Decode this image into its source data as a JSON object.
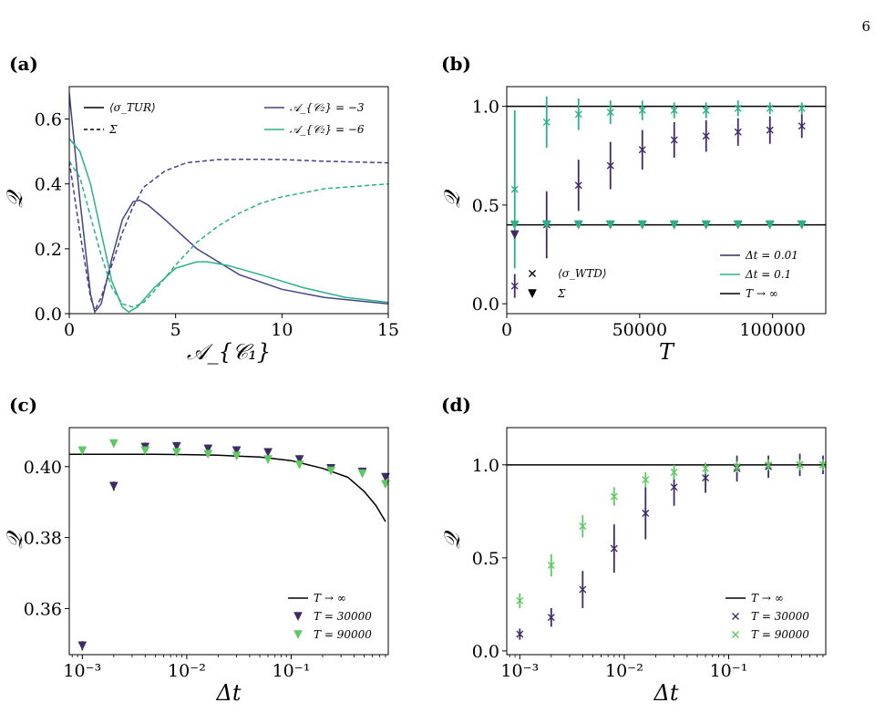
{
  "page_number": "6",
  "colors": {
    "dark_purple": "#3f2a66",
    "green": "#2ab18a",
    "indigo": "#414487",
    "black": "#000000",
    "light_green": "#5ec962"
  },
  "chart_data": [
    {
      "panel": "(a)",
      "type": "line",
      "xlabel": "𝒜_{𝒞₁}",
      "ylabel": "𝒬",
      "xlim": [
        0,
        15
      ],
      "ylim": [
        0,
        0.7
      ],
      "xticks": [
        "0",
        "5",
        "10",
        "15"
      ],
      "yticks": [
        "0.0",
        "0.2",
        "0.4",
        "0.6"
      ],
      "legend_style": [
        "⟨σ_TUR⟩",
        "Σ"
      ],
      "legend_color": [
        "𝒜_{𝒞₂} = −3",
        "𝒜_{𝒞₂} = −6"
      ],
      "series": [
        {
          "name": "⟨σ_TUR⟩, 𝒜_{𝒞₂} = −3",
          "color": "#414487",
          "dash": false,
          "x": [
            0,
            0.5,
            1.0,
            1.2,
            1.5,
            2.0,
            2.5,
            3.0,
            3.3,
            3.7,
            4.5,
            6,
            8,
            10,
            12,
            15
          ],
          "y": [
            0.68,
            0.35,
            0.06,
            0.005,
            0.03,
            0.17,
            0.29,
            0.345,
            0.35,
            0.335,
            0.29,
            0.2,
            0.12,
            0.075,
            0.05,
            0.03
          ]
        },
        {
          "name": "⟨σ_TUR⟩, 𝒜_{𝒞₂} = −6",
          "color": "#2ab18a",
          "dash": false,
          "x": [
            0,
            0.5,
            1.0,
            1.5,
            2.0,
            2.5,
            2.8,
            3.2,
            4.0,
            5.0,
            6.0,
            6.5,
            7.5,
            9,
            11,
            13,
            15
          ],
          "y": [
            0.54,
            0.5,
            0.4,
            0.25,
            0.1,
            0.02,
            0.005,
            0.02,
            0.08,
            0.14,
            0.16,
            0.16,
            0.148,
            0.12,
            0.08,
            0.05,
            0.035
          ]
        },
        {
          "name": "Σ, 𝒜_{𝒞₂} = −3",
          "color": "#414487",
          "dash": true,
          "x": [
            0,
            0.5,
            1.0,
            1.2,
            1.5,
            2.0,
            2.5,
            3.0,
            3.5,
            4.5,
            5.5,
            7,
            8.5,
            10,
            12,
            15
          ],
          "y": [
            0.47,
            0.25,
            0.05,
            0.01,
            0.05,
            0.15,
            0.25,
            0.33,
            0.39,
            0.44,
            0.465,
            0.475,
            0.476,
            0.475,
            0.47,
            0.465
          ]
        },
        {
          "name": "Σ, 𝒜_{𝒞₂} = −6",
          "color": "#2ab18a",
          "dash": true,
          "x": [
            0,
            0.5,
            1.0,
            1.5,
            2.0,
            2.5,
            3.0,
            3.5,
            4.0,
            5.0,
            6.0,
            7.0,
            8.0,
            9.0,
            10,
            12,
            15
          ],
          "y": [
            0.47,
            0.42,
            0.3,
            0.18,
            0.08,
            0.03,
            0.02,
            0.035,
            0.07,
            0.15,
            0.22,
            0.27,
            0.31,
            0.34,
            0.36,
            0.385,
            0.4
          ]
        }
      ]
    },
    {
      "panel": "(b)",
      "type": "scatter",
      "xlabel": "T",
      "ylabel": "𝒬",
      "xlim": [
        0,
        120000
      ],
      "ylim": [
        -0.05,
        1.1
      ],
      "xticks": [
        "0",
        "50000",
        "100000"
      ],
      "yticks": [
        "0.0",
        "0.5",
        "1.0"
      ],
      "hlines": [
        1.0,
        0.4
      ],
      "legend_marker": [
        "⟨σ_WTD⟩",
        "Σ"
      ],
      "legend_line": [
        "Δt = 0.01",
        "Δt = 0.1",
        "T → ∞"
      ],
      "series": [
        {
          "name": "⟨σ_WTD⟩, Δt = 0.01",
          "color": "#3f2a66",
          "marker": "x",
          "x": [
            3000,
            15000,
            27000,
            39000,
            51000,
            63000,
            75000,
            87000,
            99000,
            111000
          ],
          "y": [
            0.09,
            0.4,
            0.6,
            0.7,
            0.78,
            0.83,
            0.85,
            0.87,
            0.88,
            0.9
          ],
          "err": [
            0.06,
            0.17,
            0.13,
            0.12,
            0.1,
            0.09,
            0.08,
            0.07,
            0.07,
            0.06
          ]
        },
        {
          "name": "⟨σ_WTD⟩, Δt = 0.1",
          "color": "#2ab18a",
          "marker": "x",
          "x": [
            3000,
            15000,
            27000,
            39000,
            51000,
            63000,
            75000,
            87000,
            99000,
            111000
          ],
          "y": [
            0.58,
            0.92,
            0.96,
            0.97,
            0.98,
            0.98,
            0.98,
            0.99,
            0.99,
            0.99
          ],
          "err": [
            0.4,
            0.13,
            0.08,
            0.06,
            0.05,
            0.04,
            0.04,
            0.04,
            0.03,
            0.03
          ]
        },
        {
          "name": "Σ, Δt = 0.01",
          "color": "#3f2a66",
          "marker": "v",
          "x": [
            3000,
            15000,
            27000,
            39000,
            51000,
            63000,
            75000,
            87000,
            99000,
            111000
          ],
          "y": [
            0.35,
            0.4,
            0.4,
            0.4,
            0.4,
            0.4,
            0.4,
            0.4,
            0.4,
            0.4
          ],
          "err": [
            0.02,
            0.01,
            0.01,
            0.01,
            0.01,
            0.01,
            0.01,
            0.01,
            0.01,
            0.01
          ]
        },
        {
          "name": "Σ, Δt = 0.1",
          "color": "#2ab18a",
          "marker": "v",
          "x": [
            3000,
            15000,
            27000,
            39000,
            51000,
            63000,
            75000,
            87000,
            99000,
            111000
          ],
          "y": [
            0.4,
            0.4,
            0.4,
            0.4,
            0.4,
            0.4,
            0.4,
            0.4,
            0.4,
            0.4
          ],
          "err": [
            0.01,
            0.01,
            0.01,
            0.01,
            0.01,
            0.01,
            0.01,
            0.01,
            0.01,
            0.01
          ]
        }
      ]
    },
    {
      "panel": "(c)",
      "type": "scatter",
      "xlabel": "Δt",
      "ylabel": "𝒬",
      "xscale": "log",
      "xlim": [
        0.00075,
        0.85
      ],
      "ylim": [
        0.347,
        0.411
      ],
      "xticks": [
        "10⁻³",
        "10⁻²",
        "10⁻¹"
      ],
      "yticks": [
        "0.36",
        "0.38",
        "0.40"
      ],
      "legend": [
        "T → ∞",
        "T = 30000",
        "T = 90000"
      ],
      "series": [
        {
          "name": "T → ∞",
          "color": "#000000",
          "marker": "line",
          "x": [
            0.00075,
            0.002,
            0.005,
            0.01,
            0.02,
            0.05,
            0.1,
            0.2,
            0.35,
            0.5,
            0.65,
            0.8
          ],
          "y": [
            0.4035,
            0.4035,
            0.4035,
            0.4034,
            0.4032,
            0.4027,
            0.4017,
            0.3995,
            0.397,
            0.393,
            0.389,
            0.3845
          ]
        },
        {
          "name": "T = 30000",
          "color": "#3f2a66",
          "marker": "v",
          "x": [
            0.001,
            0.002,
            0.004,
            0.008,
            0.016,
            0.03,
            0.06,
            0.12,
            0.24,
            0.48,
            0.8
          ],
          "y": [
            0.3495,
            0.3945,
            0.4055,
            0.4057,
            0.405,
            0.4045,
            0.404,
            0.402,
            0.3995,
            0.3985,
            0.397
          ],
          "err": [
            0.0013,
            0.0013,
            0.0013,
            0.0012,
            0.0012,
            0.0012,
            0.0012,
            0.0012,
            0.0012,
            0.0012,
            0.0012
          ]
        },
        {
          "name": "T = 90000",
          "color": "#5ec962",
          "marker": "v",
          "x": [
            0.001,
            0.002,
            0.004,
            0.008,
            0.016,
            0.03,
            0.06,
            0.12,
            0.24,
            0.48,
            0.8
          ],
          "y": [
            0.4045,
            0.4065,
            0.4045,
            0.404,
            0.4035,
            0.403,
            0.402,
            0.4005,
            0.3988,
            0.398,
            0.395
          ],
          "err": [
            0.0006,
            0.0006,
            0.0006,
            0.0006,
            0.0006,
            0.0006,
            0.0006,
            0.0006,
            0.0006,
            0.0006,
            0.0006
          ]
        }
      ]
    },
    {
      "panel": "(d)",
      "type": "scatter",
      "xlabel": "Δt",
      "ylabel": "𝒬",
      "xscale": "log",
      "xlim": [
        0.00075,
        0.85
      ],
      "ylim": [
        -0.02,
        1.2
      ],
      "xticks": [
        "10⁻³",
        "10⁻²",
        "10⁻¹"
      ],
      "yticks": [
        "0.0",
        "0.5",
        "1.0"
      ],
      "hlines": [
        1.0
      ],
      "legend": [
        "T → ∞",
        "T = 30000",
        "T = 90000"
      ],
      "series": [
        {
          "name": "T = 30000",
          "color": "#3f2a66",
          "marker": "x",
          "x": [
            0.001,
            0.002,
            0.004,
            0.008,
            0.016,
            0.03,
            0.06,
            0.12,
            0.24,
            0.48,
            0.8
          ],
          "y": [
            0.09,
            0.18,
            0.33,
            0.55,
            0.74,
            0.88,
            0.93,
            0.98,
            0.99,
            1.0,
            1.0
          ],
          "err": [
            0.03,
            0.05,
            0.1,
            0.13,
            0.14,
            0.1,
            0.08,
            0.07,
            0.06,
            0.06,
            0.05
          ]
        },
        {
          "name": "T = 90000",
          "color": "#5ec962",
          "marker": "x",
          "x": [
            0.001,
            0.002,
            0.004,
            0.008,
            0.016,
            0.03,
            0.06,
            0.12,
            0.24,
            0.48,
            0.8
          ],
          "y": [
            0.27,
            0.46,
            0.67,
            0.83,
            0.92,
            0.96,
            0.98,
            0.99,
            1.0,
            1.0,
            1.0
          ],
          "err": [
            0.04,
            0.06,
            0.06,
            0.05,
            0.04,
            0.04,
            0.03,
            0.03,
            0.03,
            0.03,
            0.03
          ]
        }
      ]
    }
  ]
}
